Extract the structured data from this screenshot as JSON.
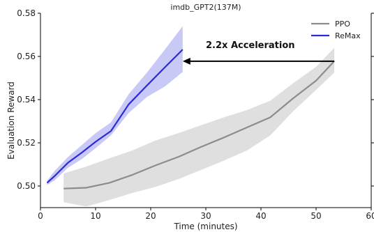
{
  "chart_data": {
    "type": "line",
    "title": "imdb_GPT2(137M)",
    "xlabel": "Time (minutes)",
    "ylabel": "Evaluation Reward",
    "xlim": [
      0,
      60
    ],
    "ylim": [
      0.49,
      0.58
    ],
    "xticks": [
      0,
      10,
      20,
      30,
      40,
      50,
      60
    ],
    "xtick_labels": [
      "0",
      "10",
      "20",
      "30",
      "40",
      "50",
      "60"
    ],
    "yticks": [
      0.5,
      0.52,
      0.54,
      0.56,
      0.58
    ],
    "ytick_labels": [
      "0.50",
      "0.52",
      "0.54",
      "0.56",
      "0.58"
    ],
    "grid": false,
    "legend_position": "top-right",
    "series": [
      {
        "name": "PPO",
        "color": "#8c8c8c",
        "band_color": "#d9d9d9",
        "x": [
          4.2,
          8.3,
          12.5,
          16.7,
          20.8,
          25.0,
          29.2,
          33.3,
          37.5,
          41.7,
          45.8,
          50.0,
          53.3
        ],
        "y": [
          0.4988,
          0.4992,
          0.5015,
          0.5052,
          0.5095,
          0.5135,
          0.5182,
          0.5225,
          0.5272,
          0.5318,
          0.5405,
          0.5488,
          0.5578
        ],
        "y_lower": [
          0.4925,
          0.4905,
          0.4935,
          0.4968,
          0.4995,
          0.5032,
          0.5075,
          0.5118,
          0.5165,
          0.5235,
          0.5345,
          0.5445,
          0.5525
        ],
        "y_upper": [
          0.5058,
          0.509,
          0.5128,
          0.5165,
          0.521,
          0.5245,
          0.5282,
          0.5318,
          0.5352,
          0.5395,
          0.5475,
          0.5552,
          0.564
        ]
      },
      {
        "name": "ReMax",
        "color": "#2b2bd6",
        "band_color": "#bfbff7",
        "x": [
          1.2,
          2.5,
          5.0,
          7.5,
          10.0,
          12.8,
          16.0,
          19.3,
          22.5,
          25.8
        ],
        "y": [
          0.5015,
          0.5045,
          0.5108,
          0.5155,
          0.5205,
          0.5255,
          0.5378,
          0.5465,
          0.5548,
          0.5632
        ],
        "y_lower": [
          0.5005,
          0.5025,
          0.5085,
          0.5125,
          0.5175,
          0.5235,
          0.5338,
          0.5412,
          0.546,
          0.5528
        ],
        "y_upper": [
          0.5025,
          0.5068,
          0.5135,
          0.519,
          0.5245,
          0.5295,
          0.5425,
          0.5525,
          0.563,
          0.574
        ]
      }
    ],
    "annotation": {
      "text": "2.2x Acceleration",
      "arrow_from": [
        53.3,
        0.5578
      ],
      "arrow_to": [
        25.8,
        0.5578
      ],
      "text_at": [
        30.0,
        0.5638
      ]
    }
  }
}
